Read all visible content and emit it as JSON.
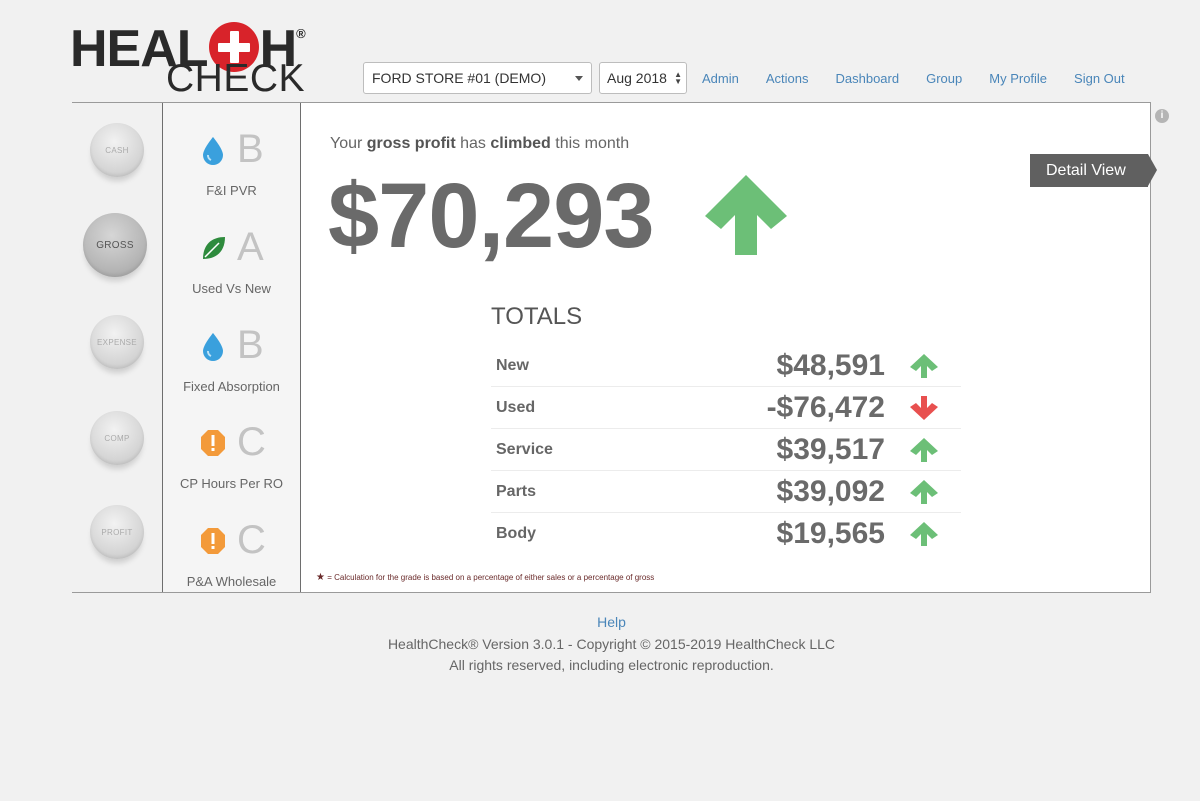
{
  "logo": {
    "line1_left": "HEAL",
    "line1_right": "H",
    "registered": "®",
    "line2": "CHECK"
  },
  "header": {
    "store_select": "FORD STORE #01 (DEMO)",
    "month_select": "Aug 2018",
    "nav": [
      "Admin",
      "Actions",
      "Dashboard",
      "Group",
      "My Profile",
      "Sign Out"
    ]
  },
  "sidebar": {
    "categories": [
      {
        "label": "CASH",
        "active": false
      },
      {
        "label": "GROSS",
        "active": true
      },
      {
        "label": "EXPENSE",
        "active": false
      },
      {
        "label": "COMP",
        "active": false
      },
      {
        "label": "PROFIT",
        "active": false
      }
    ]
  },
  "grades": [
    {
      "label": "F&I PVR",
      "grade": "B",
      "icon": "water-drop-icon"
    },
    {
      "label": "Used Vs New",
      "grade": "A",
      "icon": "leaf-icon"
    },
    {
      "label": "Fixed Absorption",
      "grade": "B",
      "icon": "water-drop-icon"
    },
    {
      "label": "CP Hours Per RO",
      "grade": "C",
      "icon": "warning-octagon-icon"
    },
    {
      "label": "P&A Wholesale",
      "grade": "C",
      "icon": "warning-octagon-icon"
    }
  ],
  "main": {
    "headline_pre": "Your ",
    "headline_b1": "gross profit",
    "headline_mid": " has ",
    "headline_b2": "climbed",
    "headline_post": " this month",
    "big_value": "$70,293",
    "detail_button": "Detail View",
    "info": "i",
    "totals_title": "TOTALS",
    "totals": [
      {
        "label": "New",
        "value": "$48,591",
        "trend": "up"
      },
      {
        "label": "Used",
        "value": "-$76,472",
        "trend": "down"
      },
      {
        "label": "Service",
        "value": "$39,517",
        "trend": "up"
      },
      {
        "label": "Parts",
        "value": "$39,092",
        "trend": "up"
      },
      {
        "label": "Body",
        "value": "$19,565",
        "trend": "up"
      }
    ],
    "footnote_star": "★",
    "footnote": " = Calculation for the grade is based on a percentage of either sales or a percentage of gross"
  },
  "footer": {
    "help": "Help",
    "copyright": "HealthCheck® Version 3.0.1 - Copyright © 2015-2019 HealthCheck LLC",
    "rights": "All rights reserved, including electronic reproduction."
  },
  "colors": {
    "up": "#6cbf77",
    "down": "#e8504f",
    "link": "#4a86b9",
    "brand_red": "#d8232a",
    "drop": "#3aa0dd",
    "leaf": "#2e8b3d",
    "warning": "#f39a3a"
  }
}
